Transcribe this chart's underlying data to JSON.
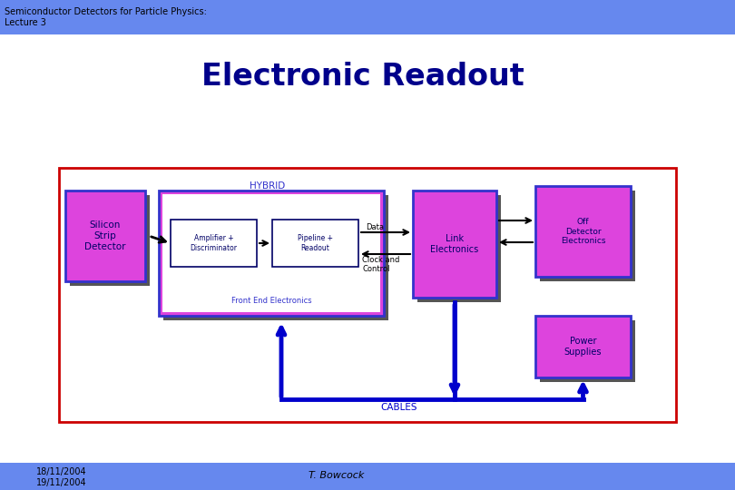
{
  "title": "Electronic Readout",
  "header_text": "Semiconductor Detectors for Particle Physics:\nLecture 3",
  "footer_left": "18/11/2004\n19/11/2004",
  "footer_center": "T. Bowcock",
  "header_bg": "#6688ee",
  "footer_bg": "#6688ee",
  "bg_color": "#ffffff",
  "title_color": "#00008B",
  "header_text_color": "#000000",
  "footer_text_color": "#000000",
  "pink": "#dd44dd",
  "dark_blue": "#000066",
  "medium_blue": "#3333cc",
  "cable_blue": "#0000cc",
  "red_border": "#cc0000"
}
